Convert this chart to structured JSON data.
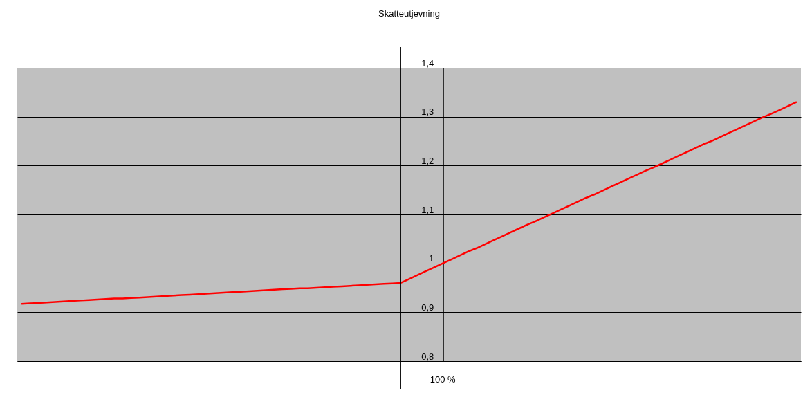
{
  "chart_data": {
    "type": "line",
    "title": "Skatteutjevning",
    "categories": [
      null,
      null,
      null,
      null,
      null,
      null,
      null,
      null,
      null,
      null,
      null,
      null,
      null,
      null,
      null,
      null,
      null,
      null,
      null,
      null,
      null,
      null,
      null,
      null,
      null,
      null,
      null,
      null,
      null,
      null,
      null,
      null,
      null,
      null,
      null,
      null,
      null,
      null,
      null,
      null,
      null,
      null,
      null,
      null,
      null,
      null,
      null,
      null,
      null,
      null,
      "100 %",
      null,
      null,
      null,
      null,
      null,
      null,
      null,
      null,
      null,
      null,
      null,
      null,
      null,
      null,
      null,
      null,
      null,
      null,
      null,
      null,
      null,
      null,
      null,
      null,
      null,
      null,
      null,
      null,
      null,
      null,
      null,
      null,
      null,
      null,
      null,
      null,
      null,
      null,
      null,
      null,
      null,
      null
    ],
    "series": [
      {
        "color": "#ff0000",
        "values": [
          0.917,
          0.918,
          0.919,
          0.92,
          0.921,
          0.922,
          0.923,
          0.924,
          0.925,
          0.926,
          0.927,
          0.928,
          0.928,
          0.929,
          0.93,
          0.931,
          0.932,
          0.933,
          0.934,
          0.935,
          0.936,
          0.937,
          0.938,
          0.939,
          0.94,
          0.941,
          0.942,
          0.943,
          0.944,
          0.945,
          0.946,
          0.947,
          0.948,
          0.949,
          0.949,
          0.95,
          0.951,
          0.952,
          0.953,
          0.954,
          0.955,
          0.956,
          0.957,
          0.958,
          0.959,
          0.96,
          0.968,
          0.976,
          0.984,
          0.992,
          1.0,
          1.008,
          1.016,
          1.024,
          1.031,
          1.039,
          1.047,
          1.055,
          1.063,
          1.071,
          1.079,
          1.086,
          1.094,
          1.102,
          1.11,
          1.118,
          1.126,
          1.134,
          1.141,
          1.149,
          1.157,
          1.165,
          1.173,
          1.181,
          1.189,
          1.196,
          1.204,
          1.212,
          1.22,
          1.228,
          1.236,
          1.244,
          1.251,
          1.259,
          1.267,
          1.275,
          1.283,
          1.291,
          1.299,
          1.306,
          1.314,
          1.322,
          1.33
        ]
      }
    ],
    "ylim": [
      0.8,
      1.4
    ],
    "yticks": [
      {
        "value": 0.8,
        "label": "0,8"
      },
      {
        "value": 0.9,
        "label": "0,9"
      },
      {
        "value": 1,
        "label": "1"
      },
      {
        "value": 1.1,
        "label": "1,1"
      },
      {
        "value": 1.2,
        "label": "1,2"
      },
      {
        "value": 1.3,
        "label": "1,3"
      },
      {
        "value": 1.4,
        "label": "1,4"
      }
    ],
    "grid": "y",
    "legend": false,
    "marker": "none",
    "line_style": "solid"
  }
}
